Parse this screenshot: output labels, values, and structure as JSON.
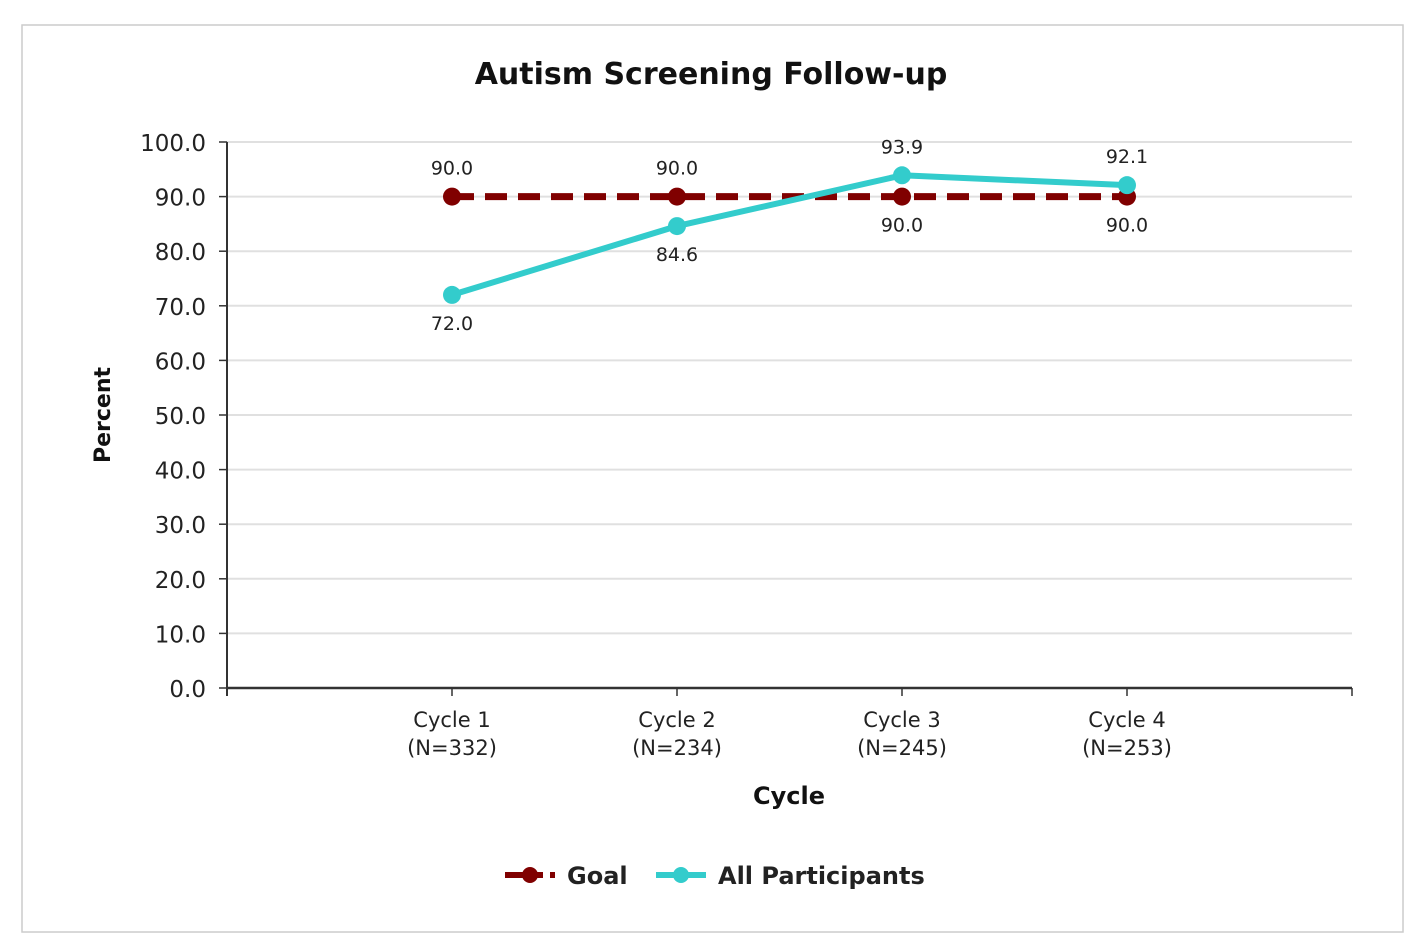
{
  "chart_data": {
    "type": "line",
    "title": "Autism Screening Follow-up",
    "xlabel": "Cycle",
    "ylabel": "Percent",
    "ylim": [
      0,
      100
    ],
    "yticks": [
      "0.0",
      "10.0",
      "20.0",
      "30.0",
      "40.0",
      "50.0",
      "60.0",
      "70.0",
      "80.0",
      "90.0",
      "100.0"
    ],
    "categories": [
      {
        "line1": "Cycle 1",
        "line2": "(N=332)"
      },
      {
        "line1": "Cycle 2",
        "line2": "(N=234)"
      },
      {
        "line1": "Cycle 3",
        "line2": "(N=245)"
      },
      {
        "line1": "Cycle 4",
        "line2": "(N=253)"
      }
    ],
    "series": [
      {
        "name": "Goal",
        "color": "#800000",
        "dashed": true,
        "values": [
          90.0,
          90.0,
          90.0,
          90.0
        ],
        "labels": [
          "90.0",
          "90.0",
          "90.0",
          "90.0"
        ],
        "label_pos": [
          "above",
          "above",
          "below",
          "below"
        ]
      },
      {
        "name": "All Participants",
        "color": "#33cccc",
        "dashed": false,
        "values": [
          72.0,
          84.6,
          93.9,
          92.1
        ],
        "labels": [
          "72.0",
          "84.6",
          "93.9",
          "92.1"
        ],
        "label_pos": [
          "below",
          "below",
          "above",
          "above"
        ]
      }
    ],
    "grid": true,
    "legend": "bottom-center"
  }
}
